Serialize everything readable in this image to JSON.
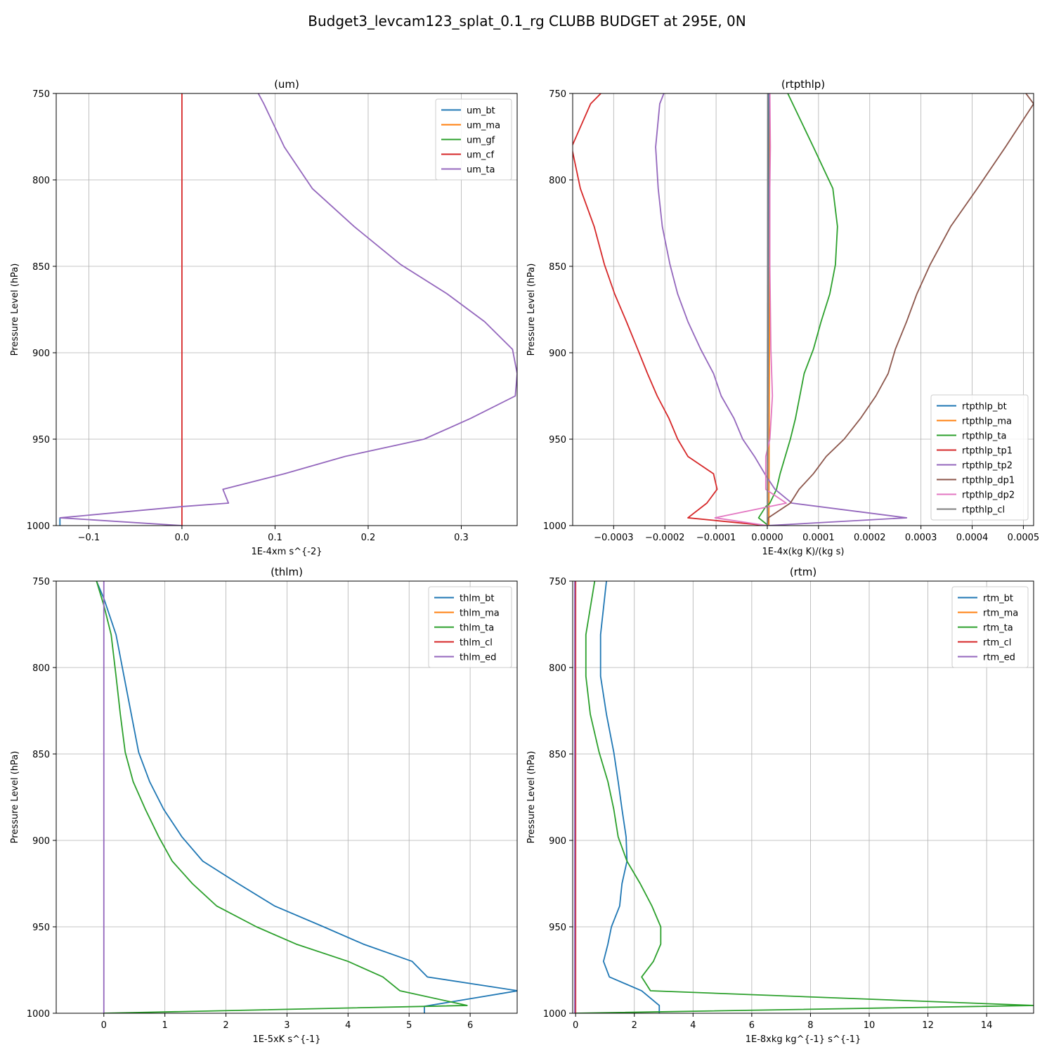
{
  "figure": {
    "title": "Budget3_levcam123_splat_0.1_rg CLUBB BUDGET at 295E, 0N"
  },
  "chart_data": [
    {
      "type": "line",
      "title": "(um)",
      "xlabel": "1E-4xm s^{-2}",
      "ylabel": "Pressure Level (hPa)",
      "xlim": [
        -0.135,
        0.36
      ],
      "ylim": [
        1000,
        750
      ],
      "y_inverted": true,
      "xticks": [
        -0.1,
        0.0,
        0.1,
        0.2,
        0.3
      ],
      "xtick_labels": [
        "−0.1",
        "0.0",
        "0.1",
        "0.2",
        "0.3"
      ],
      "yticks": [
        750,
        800,
        850,
        900,
        950,
        1000
      ],
      "ytick_labels": [
        "750",
        "800",
        "850",
        "900",
        "950",
        "1000"
      ],
      "grid": true,
      "legend": "top-right",
      "series": [
        {
          "name": "um_bt",
          "color": "#1f77b4",
          "points": [
            [
              -0.131,
              995.5
            ],
            [
              -0.131,
              1000
            ]
          ]
        },
        {
          "name": "um_ma",
          "color": "#ff7f0e",
          "points": []
        },
        {
          "name": "um_gf",
          "color": "#2ca02c",
          "points": []
        },
        {
          "name": "um_cf",
          "color": "#d62728",
          "points": [
            [
              0.0,
              750
            ],
            [
              0.0,
              1000
            ]
          ]
        },
        {
          "name": "um_ta",
          "color": "#9467bd",
          "points": [
            [
              0.082,
              750
            ],
            [
              0.088,
              756
            ],
            [
              0.11,
              781
            ],
            [
              0.14,
              805
            ],
            [
              0.185,
              827
            ],
            [
              0.235,
              849
            ],
            [
              0.285,
              866
            ],
            [
              0.325,
              882
            ],
            [
              0.355,
              898
            ],
            [
              0.36,
              912
            ],
            [
              0.358,
              925
            ],
            [
              0.31,
              938
            ],
            [
              0.26,
              950
            ],
            [
              0.175,
              960
            ],
            [
              0.11,
              970
            ],
            [
              0.044,
              979
            ],
            [
              0.05,
              987
            ],
            [
              0.0,
              989
            ],
            [
              -0.131,
              995.5
            ],
            [
              0.0,
              1000
            ]
          ]
        }
      ]
    },
    {
      "type": "line",
      "title": "(rtpthlp)",
      "xlabel": "1E-4x(kg K)/(kg s)",
      "ylabel": "Pressure Level (hPa)",
      "xlim": [
        -0.00038,
        0.00052
      ],
      "ylim": [
        1000,
        750
      ],
      "y_inverted": true,
      "xticks": [
        -0.0003,
        -0.0002,
        -0.0001,
        0.0,
        0.0001,
        0.0002,
        0.0003,
        0.0004,
        0.0005
      ],
      "xtick_labels": [
        "−0.0003",
        "−0.0002",
        "−0.0001",
        "0.0000",
        "0.0001",
        "0.0002",
        "0.0003",
        "0.0004",
        "0.0005"
      ],
      "yticks": [
        750,
        800,
        850,
        900,
        950,
        1000
      ],
      "ytick_labels": [
        "750",
        "800",
        "850",
        "900",
        "950",
        "1000"
      ],
      "grid": true,
      "legend": "bottom-right",
      "series": [
        {
          "name": "rtpthlp_bt",
          "color": "#1f77b4",
          "points": [
            [
              3e-06,
              750
            ],
            [
              3e-06,
              1000
            ]
          ]
        },
        {
          "name": "rtpthlp_ma",
          "color": "#ff7f0e",
          "points": [
            [
              5e-06,
              750
            ],
            [
              4e-06,
              900
            ],
            [
              3e-06,
              1000
            ]
          ]
        },
        {
          "name": "rtpthlp_ta",
          "color": "#2ca02c",
          "points": [
            [
              4e-05,
              750
            ],
            [
              9e-05,
              781
            ],
            [
              0.000128,
              805
            ],
            [
              0.000137,
              827
            ],
            [
              0.000133,
              849
            ],
            [
              0.000122,
              866
            ],
            [
              0.000105,
              882
            ],
            [
              9e-05,
              898
            ],
            [
              7.2e-05,
              912
            ],
            [
              5.5e-05,
              938
            ],
            [
              4.5e-05,
              950
            ],
            [
              3.5e-05,
              960
            ],
            [
              2.5e-05,
              970
            ],
            [
              1.8e-05,
              979
            ],
            [
              5e-06,
              987
            ],
            [
              -3e-06,
              989
            ],
            [
              -1.7e-05,
              995.5
            ],
            [
              2e-06,
              1000
            ]
          ]
        },
        {
          "name": "rtpthlp_tp1",
          "color": "#d62728",
          "points": [
            [
              -0.000325,
              750
            ],
            [
              -0.000345,
              756
            ],
            [
              -0.000382,
              781
            ],
            [
              -0.000365,
              805
            ],
            [
              -0.000338,
              827
            ],
            [
              -0.000318,
              849
            ],
            [
              -0.000298,
              866
            ],
            [
              -0.000275,
              882
            ],
            [
              -0.000253,
              898
            ],
            [
              -0.000234,
              912
            ],
            [
              -0.000215,
              925
            ],
            [
              -0.000192,
              938
            ],
            [
              -0.000175,
              950
            ],
            [
              -0.000155,
              960
            ],
            [
              -0.000105,
              970
            ],
            [
              -9.8e-05,
              979
            ],
            [
              -0.000118,
              987
            ],
            [
              -0.000155,
              995.5
            ],
            [
              0.0,
              1000
            ]
          ]
        },
        {
          "name": "rtpthlp_tp2",
          "color": "#9467bd",
          "points": [
            [
              -0.000202,
              750
            ],
            [
              -0.00021,
              756
            ],
            [
              -0.000218,
              781
            ],
            [
              -0.000213,
              805
            ],
            [
              -0.000205,
              827
            ],
            [
              -0.00019,
              849
            ],
            [
              -0.000175,
              866
            ],
            [
              -0.000155,
              882
            ],
            [
              -0.00013,
              898
            ],
            [
              -0.000105,
              912
            ],
            [
              -9e-05,
              925
            ],
            [
              -6.5e-05,
              938
            ],
            [
              -4.8e-05,
              950
            ],
            [
              -2.5e-05,
              960
            ],
            [
              -5e-06,
              970
            ],
            [
              1.5e-05,
              979
            ],
            [
              4.8e-05,
              987
            ],
            [
              0.000272,
              995.5
            ],
            [
              0.0,
              1000
            ]
          ]
        },
        {
          "name": "rtpthlp_dp1",
          "color": "#8c564b",
          "points": [
            [
              0.000505,
              750
            ],
            [
              0.00052,
              756
            ],
            [
              0.000465,
              781
            ],
            [
              0.00041,
              805
            ],
            [
              0.000358,
              827
            ],
            [
              0.000318,
              849
            ],
            [
              0.000292,
              866
            ],
            [
              0.000272,
              882
            ],
            [
              0.00025,
              898
            ],
            [
              0.000236,
              912
            ],
            [
              0.000212,
              925
            ],
            [
              0.000182,
              938
            ],
            [
              0.00015,
              950
            ],
            [
              0.000115,
              960
            ],
            [
              9e-05,
              970
            ],
            [
              6.2e-05,
              979
            ],
            [
              4.5e-05,
              987
            ],
            [
              2e-06,
              995.5
            ],
            [
              0.0,
              1000
            ]
          ]
        },
        {
          "name": "rtpthlp_dp2",
          "color": "#e377c2",
          "points": [
            [
              5e-06,
              750
            ],
            [
              6e-06,
              781
            ],
            [
              5e-06,
              805
            ],
            [
              5e-06,
              849
            ],
            [
              7e-06,
              898
            ],
            [
              1e-05,
              925
            ],
            [
              5e-06,
              950
            ],
            [
              -3e-06,
              960
            ],
            [
              -3e-06,
              979
            ],
            [
              3.7e-05,
              987
            ],
            [
              -0.000102,
              995.5
            ],
            [
              0.0,
              1000
            ]
          ]
        },
        {
          "name": "rtpthlp_cl",
          "color": "#7f7f7f",
          "points": [
            [
              1e-06,
              750
            ],
            [
              0.0,
              1000
            ]
          ]
        }
      ]
    },
    {
      "type": "line",
      "title": "(thlm)",
      "xlabel": "1E-5xK s^{-1}",
      "ylabel": "Pressure Level (hPa)",
      "xlim": [
        -0.78,
        6.77
      ],
      "ylim": [
        1000,
        750
      ],
      "y_inverted": true,
      "xticks": [
        0,
        1,
        2,
        3,
        4,
        5,
        6
      ],
      "xtick_labels": [
        "0",
        "1",
        "2",
        "3",
        "4",
        "5",
        "6"
      ],
      "yticks": [
        750,
        800,
        850,
        900,
        950,
        1000
      ],
      "ytick_labels": [
        "750",
        "800",
        "850",
        "900",
        "950",
        "1000"
      ],
      "grid": true,
      "legend": "top-right",
      "series": [
        {
          "name": "thlm_bt",
          "color": "#1f77b4",
          "points": [
            [
              -0.12,
              750
            ],
            [
              0.0,
              760
            ],
            [
              0.2,
              781
            ],
            [
              0.33,
              805
            ],
            [
              0.45,
              827
            ],
            [
              0.57,
              849
            ],
            [
              0.75,
              866
            ],
            [
              0.98,
              882
            ],
            [
              1.28,
              898
            ],
            [
              1.62,
              912
            ],
            [
              2.2,
              925
            ],
            [
              2.8,
              938
            ],
            [
              3.6,
              950
            ],
            [
              4.25,
              960
            ],
            [
              5.05,
              970
            ],
            [
              5.3,
              979
            ],
            [
              6.78,
              987
            ],
            [
              5.25,
              996
            ],
            [
              5.25,
              1000
            ]
          ]
        },
        {
          "name": "thlm_ma",
          "color": "#ff7f0e",
          "points": []
        },
        {
          "name": "thlm_ta",
          "color": "#2ca02c",
          "points": [
            [
              -0.12,
              750
            ],
            [
              0.0,
              764
            ],
            [
              0.12,
              781
            ],
            [
              0.2,
              805
            ],
            [
              0.27,
              827
            ],
            [
              0.35,
              849
            ],
            [
              0.48,
              866
            ],
            [
              0.68,
              882
            ],
            [
              0.9,
              898
            ],
            [
              1.12,
              912
            ],
            [
              1.45,
              925
            ],
            [
              1.85,
              938
            ],
            [
              2.5,
              950
            ],
            [
              3.15,
              960
            ],
            [
              4.0,
              970
            ],
            [
              4.57,
              979
            ],
            [
              4.85,
              987
            ],
            [
              5.95,
              995.5
            ],
            [
              0.0,
              1000
            ]
          ]
        },
        {
          "name": "thlm_cl",
          "color": "#d62728",
          "points": []
        },
        {
          "name": "thlm_ed",
          "color": "#9467bd",
          "points": [
            [
              0.0,
              750
            ],
            [
              0.0,
              1000
            ]
          ]
        }
      ]
    },
    {
      "type": "line",
      "title": "(rtm)",
      "xlabel": "1E-8xkg kg^{-1} s^{-1}",
      "ylabel": "Pressure Level (hPa)",
      "xlim": [
        -0.1,
        15.6
      ],
      "ylim": [
        1000,
        750
      ],
      "y_inverted": true,
      "xticks": [
        0,
        2,
        4,
        6,
        8,
        10,
        12,
        14
      ],
      "xtick_labels": [
        "0",
        "2",
        "4",
        "6",
        "8",
        "10",
        "12",
        "14"
      ],
      "yticks": [
        750,
        800,
        850,
        900,
        950,
        1000
      ],
      "ytick_labels": [
        "750",
        "800",
        "850",
        "900",
        "950",
        "1000"
      ],
      "grid": true,
      "legend": "top-right",
      "series": [
        {
          "name": "rtm_bt",
          "color": "#1f77b4",
          "points": [
            [
              1.05,
              750
            ],
            [
              0.85,
              781
            ],
            [
              0.85,
              805
            ],
            [
              1.05,
              827
            ],
            [
              1.3,
              849
            ],
            [
              1.45,
              866
            ],
            [
              1.58,
              882
            ],
            [
              1.72,
              898
            ],
            [
              1.75,
              912
            ],
            [
              1.58,
              925
            ],
            [
              1.5,
              938
            ],
            [
              1.22,
              950
            ],
            [
              1.1,
              960
            ],
            [
              0.95,
              970
            ],
            [
              1.15,
              979
            ],
            [
              2.25,
              987
            ],
            [
              2.85,
              995.5
            ],
            [
              2.85,
              1000
            ]
          ]
        },
        {
          "name": "rtm_ma",
          "color": "#ff7f0e",
          "points": []
        },
        {
          "name": "rtm_ta",
          "color": "#2ca02c",
          "points": [
            [
              0.65,
              750
            ],
            [
              0.35,
              781
            ],
            [
              0.35,
              805
            ],
            [
              0.5,
              827
            ],
            [
              0.8,
              849
            ],
            [
              1.1,
              866
            ],
            [
              1.3,
              882
            ],
            [
              1.45,
              898
            ],
            [
              1.75,
              912
            ],
            [
              2.2,
              925
            ],
            [
              2.6,
              938
            ],
            [
              2.9,
              950
            ],
            [
              2.9,
              960
            ],
            [
              2.65,
              970
            ],
            [
              2.25,
              979
            ],
            [
              2.55,
              987
            ],
            [
              15.6,
              995.5
            ],
            [
              0.0,
              1000
            ]
          ]
        },
        {
          "name": "rtm_cl",
          "color": "#d62728",
          "points": [
            [
              0.0,
              750
            ],
            [
              0.0,
              1000
            ]
          ]
        },
        {
          "name": "rtm_ed",
          "color": "#9467bd",
          "points": [
            [
              -0.03,
              750
            ],
            [
              -0.03,
              1000
            ]
          ]
        }
      ]
    }
  ]
}
